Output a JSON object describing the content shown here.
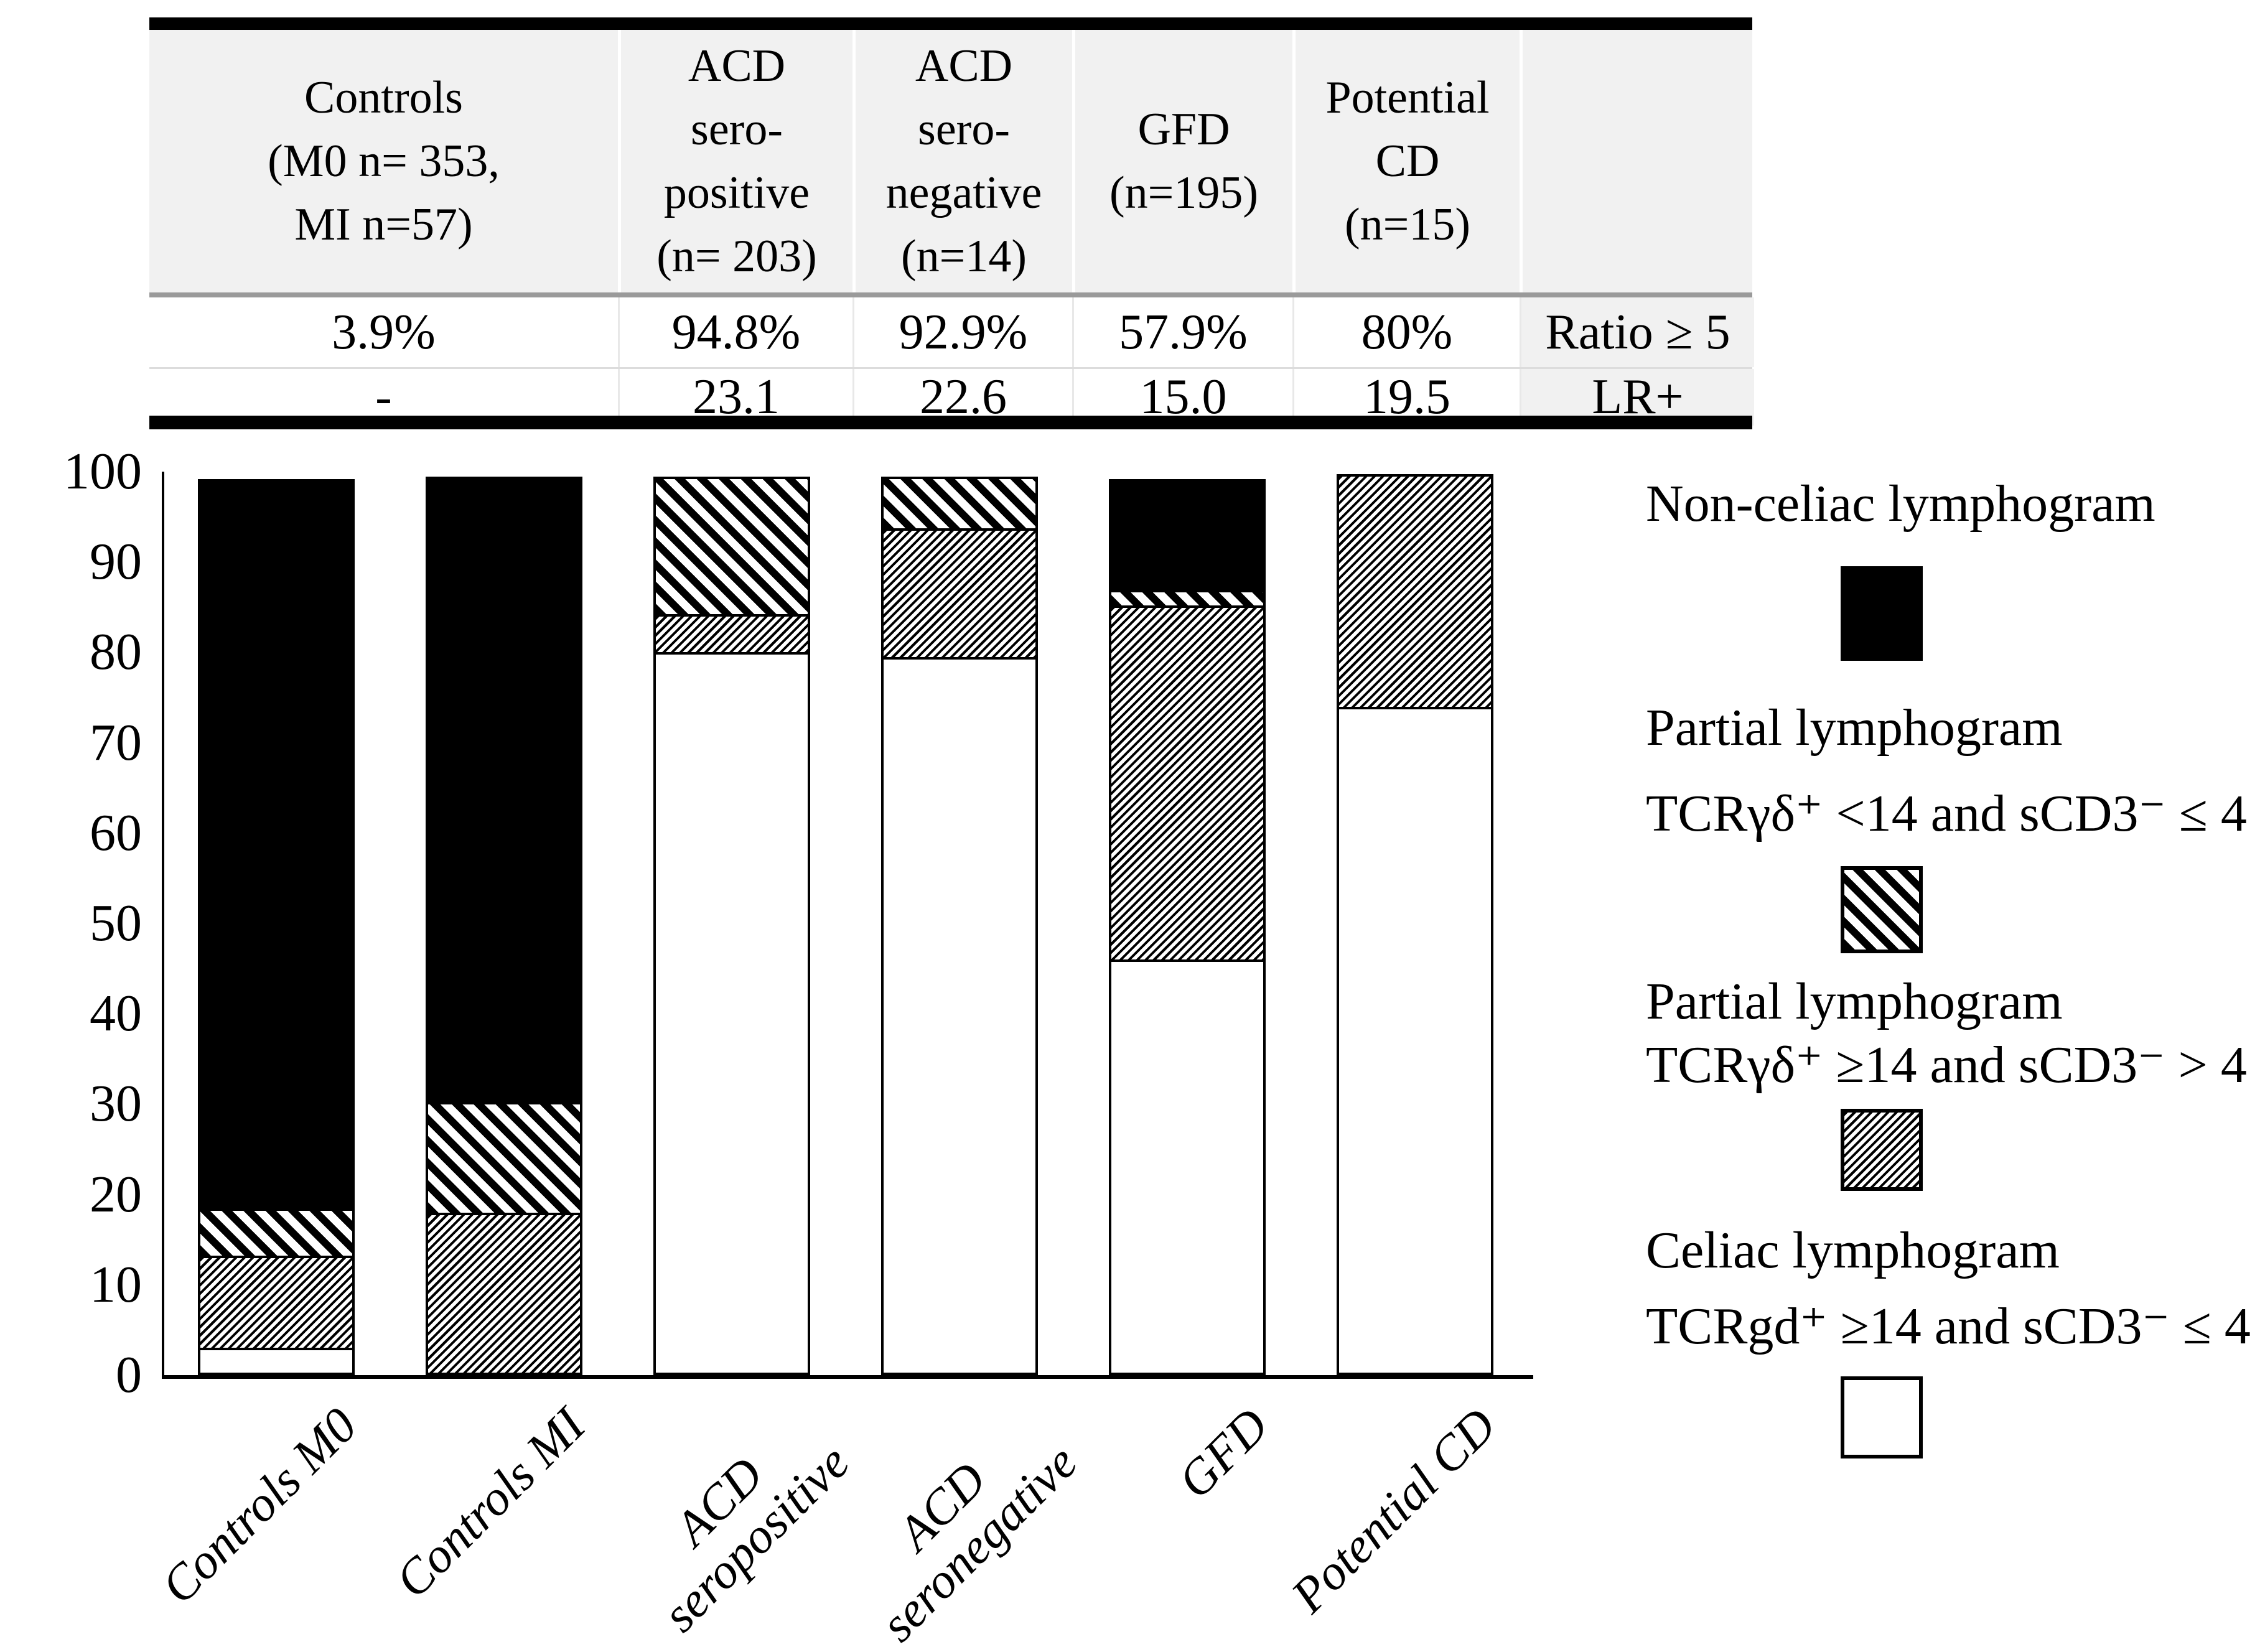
{
  "table": {
    "columns": [
      {
        "header": "Controls\n(M0 n= 353,\nMI n=57)",
        "ratio": "3.9%",
        "lr": "-"
      },
      {
        "header": "ACD\nsero-\npositive\n(n= 203)",
        "ratio": "94.8%",
        "lr": "23.1"
      },
      {
        "header": "ACD\nsero-\nnegative\n(n=14)",
        "ratio": "92.9%",
        "lr": "22.6"
      },
      {
        "header": "GFD\n(n=195)",
        "ratio": "57.9%",
        "lr": "15.0"
      },
      {
        "header": "Potential\nCD\n(n=15)",
        "ratio": "80%",
        "lr": "19.5"
      }
    ],
    "row_labels": {
      "ratio": "Ratio ≥ 5",
      "lr": "LR+"
    }
  },
  "chart_data": {
    "type": "bar",
    "stacked": true,
    "title": "",
    "xlabel": "",
    "ylabel": "",
    "ylim": [
      0,
      100
    ],
    "grid": false,
    "legend_position": "right",
    "yticks": [
      100,
      90,
      80,
      70,
      60,
      50,
      40,
      30,
      20,
      10,
      0
    ],
    "categories": [
      "Controls M0",
      "Controls MI",
      "ACD seropositive",
      "ACD seronegative",
      "GFD",
      "Potential CD"
    ],
    "xtick_labels": [
      "Controls M0",
      "Controls MI",
      "ACD\nseropositive",
      "ACD\nseronegative",
      "GFD",
      "Potential CD"
    ],
    "series": [
      {
        "name": "Celiac lymphogram TCRgd⁺ ≥14 and sCD3⁻ ≤ 4",
        "pattern": "white",
        "values": [
          3,
          0,
          80,
          79.5,
          46,
          74
        ]
      },
      {
        "name": "Partial lymphogram TCRγδ⁺ ≥14 and sCD3⁻ > 4",
        "pattern": "fine-diagonal",
        "values": [
          10.5,
          18,
          4.5,
          14.5,
          39.5,
          26
        ]
      },
      {
        "name": "Partial lymphogram TCRγδ⁺ <14 and sCD3⁻ ≤ 4",
        "pattern": "bold-diagonal",
        "values": [
          5.5,
          12.5,
          15.5,
          6,
          2,
          0
        ]
      },
      {
        "name": "Non-celiac lymphogram",
        "pattern": "black",
        "values": [
          81,
          69.5,
          0,
          0,
          12.5,
          0
        ]
      }
    ]
  },
  "legend": {
    "items": [
      {
        "title": "Non-celiac lymphogram",
        "criteria": "",
        "pattern": "black"
      },
      {
        "title": "Partial lymphogram",
        "criteria": "TCRγδ⁺ <14 and sCD3⁻ ≤ 4",
        "pattern": "bold-diagonal"
      },
      {
        "title": "Partial lymphogram",
        "criteria": "TCRγδ⁺ ≥14 and sCD3⁻ > 4",
        "pattern": "fine-diagonal"
      },
      {
        "title": "Celiac lymphogram",
        "criteria": "TCRgd⁺ ≥14 and sCD3⁻ ≤ 4",
        "pattern": "white"
      }
    ]
  }
}
